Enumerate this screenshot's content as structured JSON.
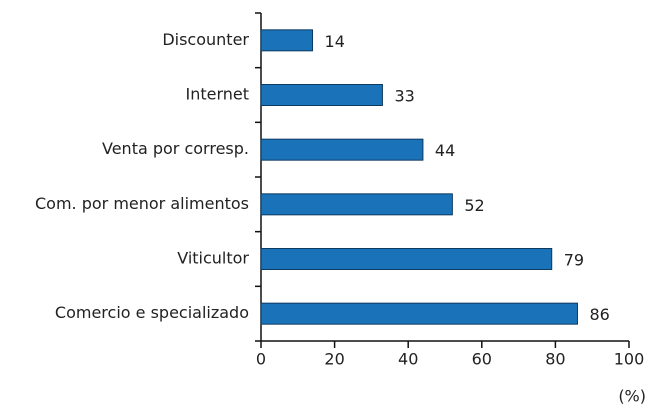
{
  "chart_data": {
    "type": "bar",
    "orientation": "horizontal",
    "categories": [
      "Discounter",
      "Internet",
      "Venta por corresp.",
      "Com. por menor alimentos",
      "Viticultor",
      "Comercio e specializado"
    ],
    "values": [
      14,
      33,
      44,
      52,
      79,
      86
    ],
    "color": "#1a72b9",
    "xlim": [
      0,
      100
    ],
    "xticks": [
      0,
      20,
      40,
      60,
      80,
      100
    ],
    "xlabel": "(%)"
  }
}
